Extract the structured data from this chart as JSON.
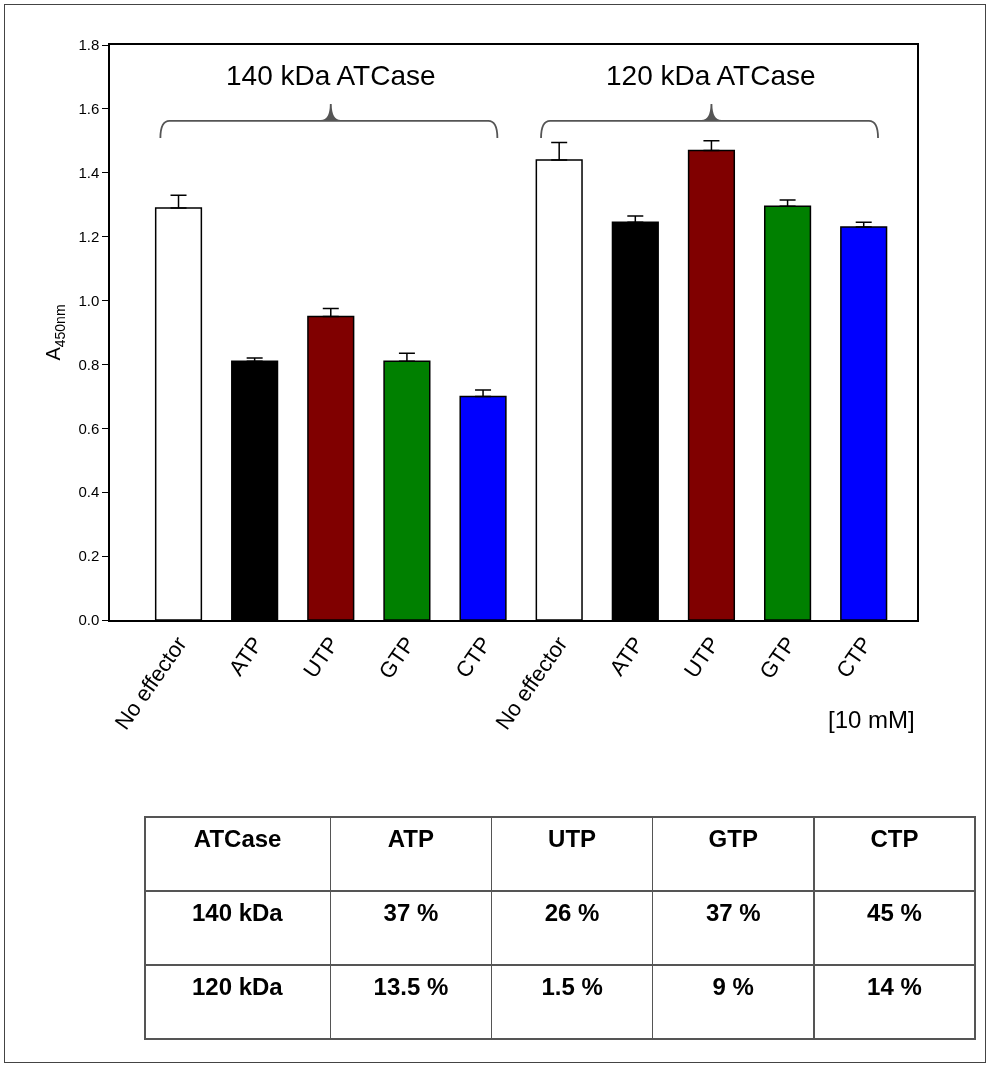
{
  "chart_data": [
    {
      "type": "bar",
      "ylabel": "A$_{450nm}$",
      "categories": [
        "No effector",
        "ATP",
        "UTP",
        "GTP",
        "CTP",
        "No effector",
        "ATP",
        "UTP",
        "GTP",
        "CTP"
      ],
      "values": [
        1.29,
        0.81,
        0.95,
        0.81,
        0.7,
        1.44,
        1.245,
        1.47,
        1.295,
        1.23
      ],
      "errors": [
        0.04,
        0.01,
        0.025,
        0.025,
        0.02,
        0.055,
        0.02,
        0.03,
        0.02,
        0.015
      ],
      "colors": [
        "#ffffff",
        "#000000",
        "#800000",
        "#008000",
        "#0000ff",
        "#ffffff",
        "#000000",
        "#800000",
        "#008000",
        "#0000ff"
      ],
      "ylim": [
        0,
        1.8
      ],
      "yticks": [
        {
          "value": 0,
          "label": "0.0"
        },
        {
          "value": 0.2,
          "label": "0.2"
        },
        {
          "value": 0.4,
          "label": "0.4"
        },
        {
          "value": 0.6,
          "label": "0.6"
        },
        {
          "value": 0.8,
          "label": "0.8"
        },
        {
          "value": 1,
          "label": "1.0"
        },
        {
          "value": 1.2,
          "label": "1.2"
        },
        {
          "value": 1.4,
          "label": "1.4"
        },
        {
          "value": 1.6,
          "label": "1.6"
        },
        {
          "value": 1.8,
          "label": "1.8"
        }
      ],
      "annotations": [
        "140 kDa ATCase",
        "120 kDa ATCase",
        "[10 mM]"
      ],
      "grid": false
    },
    {
      "type": "other",
      "legend_title": "ATCase",
      "categories": [
        "ATP",
        "UTP",
        "GTP",
        "CTP"
      ],
      "series": [
        {
          "name": "140 kDa",
          "values": [
            37,
            26,
            37,
            45
          ],
          "value_labels": [
            "37 %",
            "26 %",
            "37 %",
            "45 %"
          ]
        },
        {
          "name": "120 kDa",
          "values": [
            13.5,
            1.5,
            9,
            14
          ],
          "value_labels": [
            "13.5 %",
            "1.5 %",
            "9 %",
            "14 %"
          ]
        }
      ]
    }
  ]
}
